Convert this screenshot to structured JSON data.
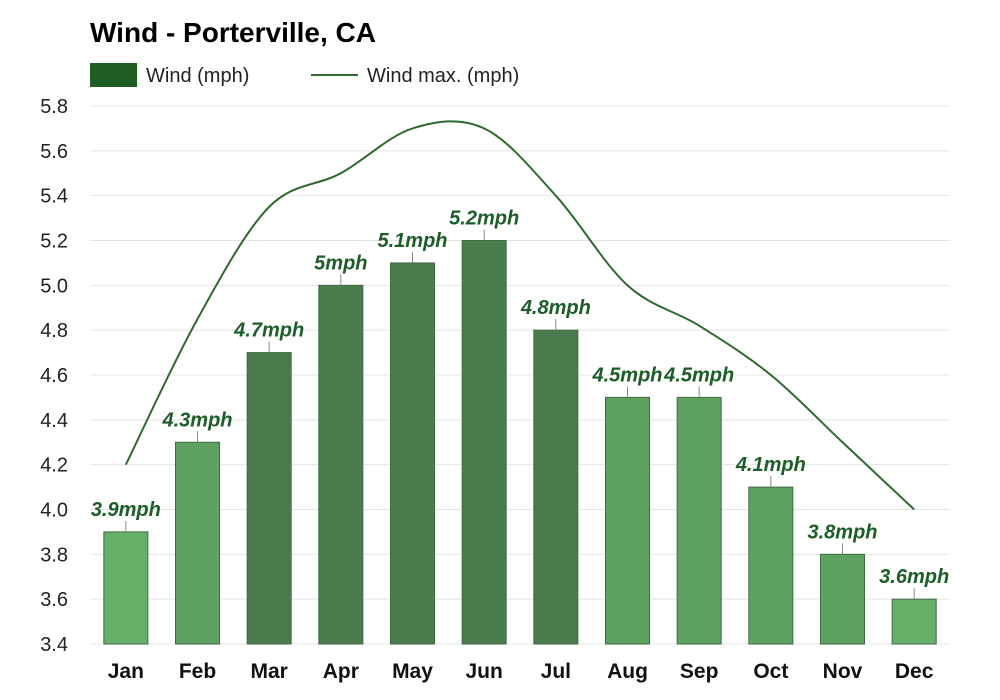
{
  "chart_data": {
    "type": "bar",
    "title": "Wind - Porterville, CA",
    "categories": [
      "Jan",
      "Feb",
      "Mar",
      "Apr",
      "May",
      "Jun",
      "Jul",
      "Aug",
      "Sep",
      "Oct",
      "Nov",
      "Dec"
    ],
    "series": [
      {
        "name": "Wind (mph)",
        "type": "bar",
        "values": [
          3.9,
          4.3,
          4.7,
          5.0,
          5.1,
          5.2,
          4.8,
          4.5,
          4.5,
          4.1,
          3.8,
          3.6
        ],
        "labels": [
          "3.9mph",
          "4.3mph",
          "4.7mph",
          "5mph",
          "5.1mph",
          "5.2mph",
          "4.8mph",
          "4.5mph",
          "4.5mph",
          "4.1mph",
          "3.8mph",
          "3.6mph"
        ],
        "colors": [
          "#67b06a",
          "#5ea262",
          "#4b7c4d",
          "#4b7c4d",
          "#4b7c4d",
          "#4b7c4d",
          "#4b7c4d",
          "#5ea262",
          "#5ea262",
          "#5ea262",
          "#5ea262",
          "#67b06a"
        ]
      },
      {
        "name": "Wind max. (mph)",
        "type": "line",
        "values": [
          4.2,
          4.85,
          5.35,
          5.5,
          5.7,
          5.7,
          5.4,
          5.0,
          4.82,
          4.6,
          4.3,
          4.0
        ],
        "color": "#2e6b2f"
      }
    ],
    "ylim": [
      3.4,
      5.8
    ],
    "yticks": [
      "3.4",
      "3.6",
      "3.8",
      "4.0",
      "4.2",
      "4.4",
      "4.6",
      "4.8",
      "5.0",
      "5.2",
      "5.4",
      "5.6",
      "5.8"
    ],
    "ytick_values": [
      3.4,
      3.6,
      3.8,
      4.0,
      4.2,
      4.4,
      4.6,
      4.8,
      5.0,
      5.2,
      5.4,
      5.6,
      5.8
    ],
    "grid": true,
    "legend": "top-left",
    "xlabel": "",
    "ylabel": "",
    "legend_colors": {
      "bar": "#1e5e22",
      "line": "#2e6b2f"
    }
  }
}
